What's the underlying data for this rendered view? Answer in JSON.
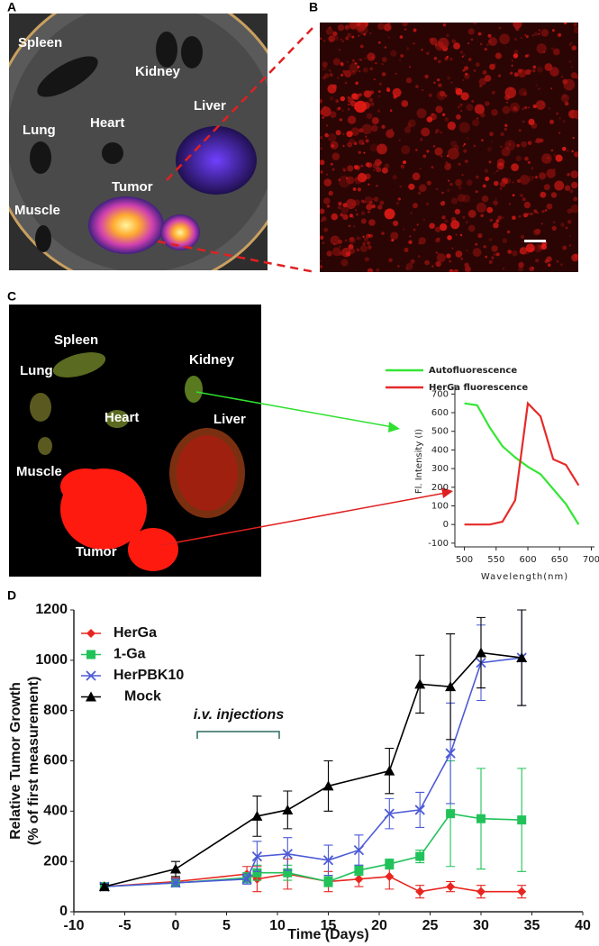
{
  "panels": {
    "A": {
      "letter": "A",
      "labels": [
        "Spleen",
        "Kidney",
        "Liver",
        "Lung",
        "Heart",
        "Muscle",
        "Tumor"
      ]
    },
    "B": {
      "letter": "B"
    },
    "C": {
      "letter": "C",
      "labels": [
        "Spleen",
        "Kidney",
        "Lung",
        "Heart",
        "Liver",
        "Muscle",
        "Tumor"
      ]
    },
    "D": {
      "letter": "D"
    }
  },
  "chart_data": [
    {
      "type": "line",
      "x_label": "Wavelength(nm)",
      "y_label": "Fl. Intensity (I)",
      "x": [
        500,
        520,
        540,
        560,
        580,
        600,
        620,
        640,
        660,
        680
      ],
      "series": [
        {
          "name": "Autofluorescence",
          "color": "#33e633",
          "values": [
            650,
            640,
            520,
            420,
            360,
            310,
            270,
            190,
            110,
            0
          ]
        },
        {
          "name": "HerGa fluorescence",
          "color": "#e62a2a",
          "values": [
            0,
            0,
            0,
            15,
            130,
            650,
            580,
            350,
            320,
            210
          ]
        }
      ],
      "xlim": [
        485,
        705
      ],
      "xticks": [
        500,
        550,
        600,
        650,
        700
      ],
      "ylim": [
        -120,
        750
      ],
      "yticks": [
        -100,
        0,
        100,
        200,
        300,
        400,
        500,
        600,
        700
      ],
      "grid": false
    },
    {
      "type": "line",
      "x_label": "Time (Days)",
      "y_label": [
        "Relative Tumor Growth",
        "(% of first measurement)"
      ],
      "annotation": "i.v. injections",
      "series": [
        {
          "name": "HerGa",
          "color": "#e8251f",
          "marker": "diamond",
          "x": [
            -7,
            0,
            7,
            8,
            11,
            15,
            18,
            21,
            24,
            27,
            30,
            34
          ],
          "values": [
            100,
            120,
            150,
            130,
            150,
            120,
            130,
            140,
            80,
            100,
            80,
            80
          ],
          "errors": [
            10,
            15,
            30,
            50,
            60,
            40,
            30,
            50,
            25,
            20,
            25,
            25
          ]
        },
        {
          "name": "1-Ga",
          "color": "#22c25a",
          "marker": "square",
          "x": [
            -7,
            0,
            7,
            8,
            11,
            15,
            18,
            21,
            24,
            27,
            30,
            34
          ],
          "values": [
            100,
            115,
            135,
            155,
            155,
            120,
            165,
            190,
            220,
            390,
            370,
            365
          ],
          "errors": [
            10,
            15,
            20,
            30,
            30,
            20,
            20,
            20,
            25,
            210,
            200,
            205
          ]
        },
        {
          "name": "HerPBK10",
          "color": "#4d5bd6",
          "marker": "x",
          "x": [
            -7,
            0,
            7,
            8,
            11,
            15,
            18,
            21,
            24,
            27,
            30,
            34
          ],
          "values": [
            100,
            115,
            130,
            220,
            230,
            205,
            245,
            390,
            405,
            630,
            990,
            1010
          ],
          "errors": [
            10,
            15,
            20,
            60,
            65,
            60,
            60,
            60,
            70,
            200,
            150,
            190
          ]
        },
        {
          "name": "Mock",
          "color": "#000000",
          "marker": "triangle",
          "x": [
            -7,
            0,
            8,
            11,
            15,
            21,
            24,
            27,
            30,
            34
          ],
          "values": [
            100,
            170,
            380,
            405,
            500,
            560,
            905,
            895,
            1030,
            1010
          ],
          "errors": [
            10,
            30,
            80,
            75,
            100,
            90,
            115,
            210,
            140,
            190
          ]
        }
      ],
      "xlim": [
        -10,
        40
      ],
      "xticks": [
        -10,
        -5,
        0,
        5,
        10,
        15,
        20,
        25,
        30,
        35,
        40
      ],
      "ylim": [
        0,
        1200
      ],
      "yticks": [
        0,
        200,
        400,
        600,
        800,
        1000,
        1200
      ],
      "grid": false
    }
  ]
}
